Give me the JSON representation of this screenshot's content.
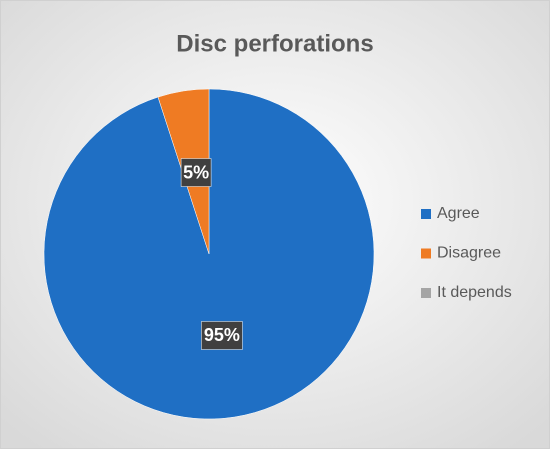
{
  "chart_data": {
    "type": "pie",
    "title": "Disc perforations",
    "categories": [
      "Agree",
      "Disagree",
      "It depends"
    ],
    "values": [
      95,
      5,
      0
    ],
    "value_labels": [
      "95%",
      "5%",
      null
    ],
    "colors": [
      "#1f6fc4",
      "#ef7b23",
      "#a5a5a5"
    ],
    "legend": "right"
  }
}
